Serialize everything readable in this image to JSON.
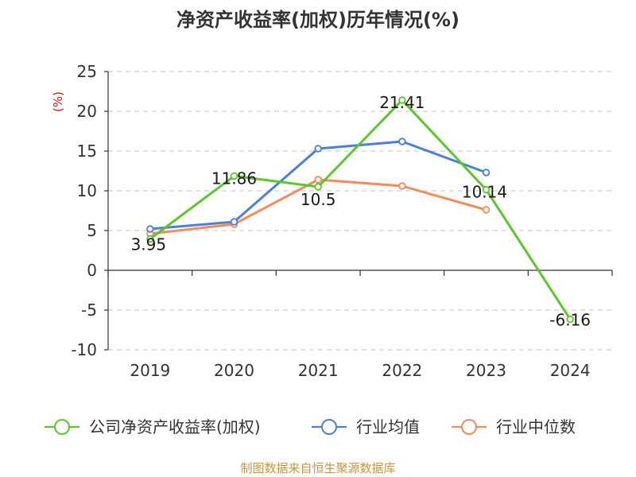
{
  "chart_data": {
    "type": "line",
    "title": "净资产收益率(加权)历年情况(%)",
    "unit_label": "(%)",
    "categories": [
      "2019",
      "2020",
      "2021",
      "2022",
      "2023",
      "2024"
    ],
    "ylim": [
      -10,
      25
    ],
    "yticks": [
      "25",
      "20",
      "15",
      "10",
      "5",
      "0",
      "-5",
      "-10"
    ],
    "grid": true,
    "series": [
      {
        "name": "公司净资产收益率(加权)",
        "color": "#5cc72a",
        "values": [
          3.95,
          11.86,
          10.5,
          21.41,
          10.14,
          -6.16
        ],
        "labels": [
          "3.95",
          "11.86",
          "10.5",
          "21.41",
          "10.14",
          "-6.16"
        ]
      },
      {
        "name": "行业均值",
        "color": "#4a7fe0",
        "values": [
          5.2,
          6.1,
          15.3,
          16.2,
          12.3,
          null
        ]
      },
      {
        "name": "行业中位数",
        "color": "#f58b5a",
        "values": [
          4.6,
          5.8,
          11.4,
          10.6,
          7.6,
          null
        ]
      }
    ],
    "source": "制图数据来自恒生聚源数据库"
  }
}
